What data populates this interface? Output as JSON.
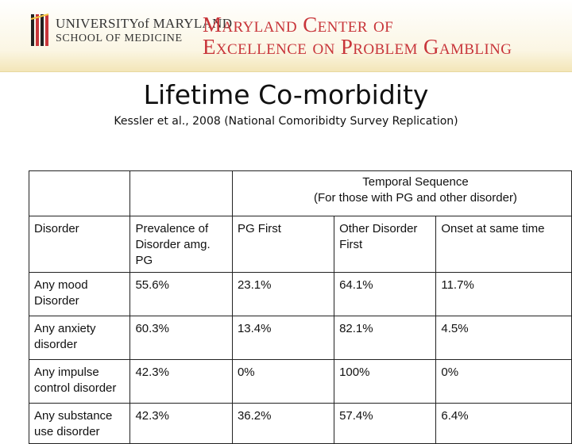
{
  "header": {
    "university_line1": "UNIVERSITYof MARYLAND",
    "university_line2": "SCHOOL OF MEDICINE",
    "center_line1": "Maryland Center of",
    "center_line2": "Excellence on Problem Gambling",
    "colors": {
      "brand_red": "#c8353a",
      "header_gold": "#f3e6b8"
    }
  },
  "slide": {
    "title": "Lifetime Co-morbidity",
    "subtitle": "Kessler et al., 2008 (National Comoribidty Survey Replication)"
  },
  "table": {
    "group_header_line1": "Temporal Sequence",
    "group_header_line2": "(For those with PG and other disorder)",
    "columns": [
      "Disorder",
      "Prevalence of Disorder amg. PG",
      "PG First",
      "Other Disorder First",
      "Onset at same time"
    ],
    "rows": [
      [
        "Any mood Disorder",
        "55.6%",
        "23.1%",
        "64.1%",
        "11.7%"
      ],
      [
        "Any anxiety disorder",
        "60.3%",
        "13.4%",
        "82.1%",
        "4.5%"
      ],
      [
        "Any impulse control disorder",
        "42.3%",
        "0%",
        "100%",
        "0%"
      ],
      [
        "Any substance use disorder",
        "42.3%",
        "36.2%",
        "57.4%",
        "6.4%"
      ]
    ]
  }
}
